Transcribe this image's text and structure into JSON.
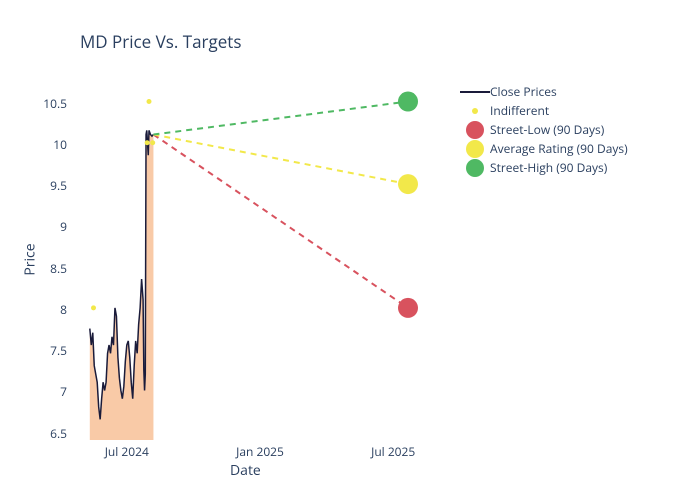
{
  "chart": {
    "type": "line+scatter",
    "title": "MD Price Vs. Targets",
    "xlabel": "Date",
    "ylabel": "Price",
    "background_color": "#ffffff",
    "title_color": "#2a3f5f",
    "axis_text_color": "#2a3f5f",
    "title_fontsize": 17,
    "axis_label_fontsize": 14,
    "tick_fontsize": 12,
    "ylim": [
      6.4,
      10.7
    ],
    "yticks": [
      6.5,
      7,
      7.5,
      8,
      8.5,
      9,
      9.5,
      10,
      10.5
    ],
    "xticks": [
      {
        "label": "Jul 2024",
        "pos": 0.14
      },
      {
        "label": "Jan 2025",
        "pos": 0.5
      },
      {
        "label": "Jul 2025",
        "pos": 0.86
      }
    ],
    "series": {
      "close_prices": {
        "label": "Close Prices",
        "color": "#1a1b3a",
        "fill_color": "#f7b889",
        "line_width": 1.5,
        "points": [
          [
            0.04,
            7.75
          ],
          [
            0.044,
            7.55
          ],
          [
            0.048,
            7.7
          ],
          [
            0.052,
            7.3
          ],
          [
            0.056,
            7.2
          ],
          [
            0.06,
            7.1
          ],
          [
            0.064,
            6.8
          ],
          [
            0.068,
            6.65
          ],
          [
            0.072,
            6.9
          ],
          [
            0.076,
            7.1
          ],
          [
            0.08,
            7.0
          ],
          [
            0.084,
            7.1
          ],
          [
            0.088,
            7.45
          ],
          [
            0.092,
            7.55
          ],
          [
            0.096,
            7.45
          ],
          [
            0.1,
            7.65
          ],
          [
            0.104,
            7.55
          ],
          [
            0.108,
            8.0
          ],
          [
            0.112,
            7.9
          ],
          [
            0.116,
            7.4
          ],
          [
            0.12,
            7.15
          ],
          [
            0.124,
            7.0
          ],
          [
            0.128,
            6.9
          ],
          [
            0.132,
            7.05
          ],
          [
            0.136,
            7.35
          ],
          [
            0.14,
            7.55
          ],
          [
            0.144,
            7.6
          ],
          [
            0.148,
            7.4
          ],
          [
            0.152,
            7.1
          ],
          [
            0.156,
            6.9
          ],
          [
            0.16,
            7.3
          ],
          [
            0.164,
            7.6
          ],
          [
            0.168,
            7.45
          ],
          [
            0.172,
            7.8
          ],
          [
            0.176,
            8.0
          ],
          [
            0.18,
            8.35
          ],
          [
            0.184,
            8.1
          ],
          [
            0.186,
            7.25
          ],
          [
            0.188,
            7.0
          ],
          [
            0.19,
            7.2
          ],
          [
            0.192,
            10.1
          ],
          [
            0.194,
            10.15
          ],
          [
            0.196,
            10.0
          ],
          [
            0.198,
            9.85
          ],
          [
            0.2,
            10.15
          ],
          [
            0.204,
            10.1
          ],
          [
            0.208,
            10.08
          ],
          [
            0.212,
            10.1
          ]
        ]
      },
      "indifferent": {
        "label": "Indifferent",
        "color": "#f2e84a",
        "marker_size": 5,
        "points": [
          [
            0.05,
            8.0
          ],
          [
            0.195,
            10.0
          ],
          [
            0.2,
            10.5
          ],
          [
            0.21,
            10.0
          ]
        ]
      },
      "street_low": {
        "label": "Street-Low (90 Days)",
        "color": "#d8525e",
        "marker_size": 20,
        "dash": "6,5",
        "line": [
          [
            0.212,
            10.1
          ],
          [
            0.9,
            8.0
          ]
        ],
        "target_value": 8.0
      },
      "average_rating": {
        "label": "Average Rating (90 Days)",
        "color": "#f2e84a",
        "marker_size": 20,
        "dash": "6,5",
        "line": [
          [
            0.212,
            10.1
          ],
          [
            0.9,
            9.5
          ]
        ],
        "target_value": 9.5
      },
      "street_high": {
        "label": "Street-High (90 Days)",
        "color": "#4fb963",
        "marker_size": 20,
        "dash": "6,5",
        "line": [
          [
            0.212,
            10.1
          ],
          [
            0.9,
            10.5
          ]
        ],
        "target_value": 10.5
      }
    },
    "legend": [
      {
        "key": "close_prices",
        "type": "line"
      },
      {
        "key": "indifferent",
        "type": "dot"
      },
      {
        "key": "street_low",
        "type": "bigdot"
      },
      {
        "key": "average_rating",
        "type": "bigdot"
      },
      {
        "key": "street_high",
        "type": "bigdot"
      }
    ]
  }
}
